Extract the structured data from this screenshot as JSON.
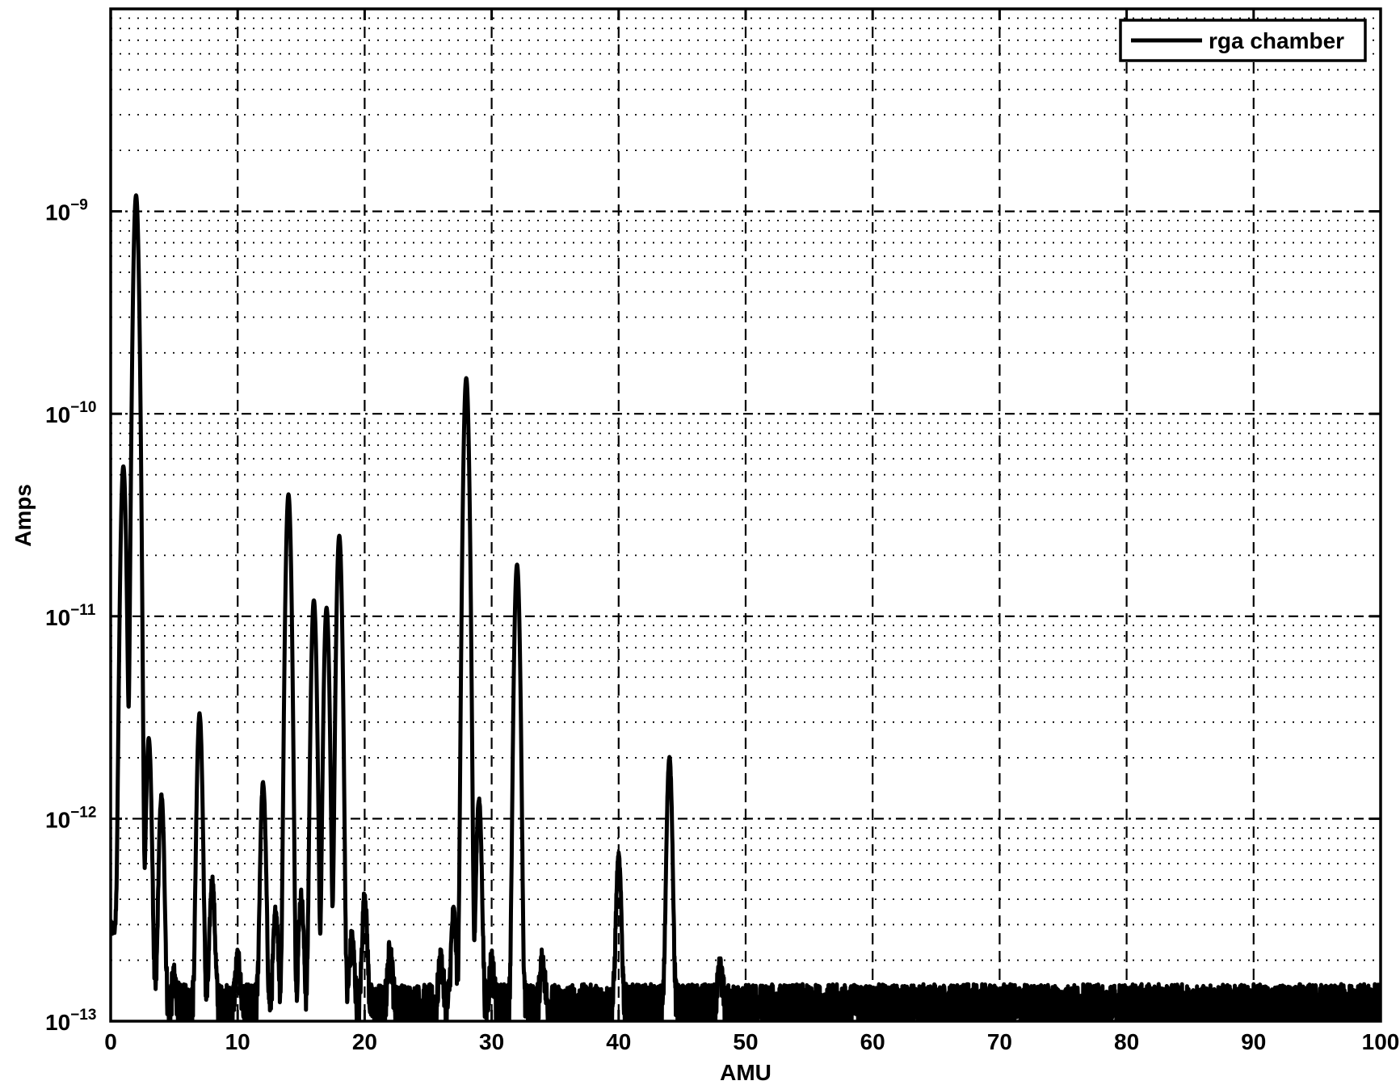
{
  "chart_data": {
    "type": "line",
    "title": "",
    "xlabel": "AMU",
    "ylabel": "Amps",
    "xlim": [
      0,
      100
    ],
    "ylim": [
      1e-13,
      1e-08
    ],
    "yscale": "log",
    "grid": true,
    "legend_position": "top-right",
    "x_ticks": [
      "0",
      "10",
      "20",
      "30",
      "40",
      "50",
      "60",
      "70",
      "80",
      "90",
      "100"
    ],
    "y_ticks": [
      {
        "base": "10",
        "exp": "−13",
        "value": 1e-13
      },
      {
        "base": "10",
        "exp": "−12",
        "value": 1e-12
      },
      {
        "base": "10",
        "exp": "−11",
        "value": 1e-11
      },
      {
        "base": "10",
        "exp": "−10",
        "value": 1e-10
      },
      {
        "base": "10",
        "exp": "−9",
        "value": 1e-09
      }
    ],
    "baseline": 1.2e-13,
    "series": [
      {
        "name": "rga chamber",
        "color": "#000000",
        "peaks": [
          {
            "x": 1,
            "y": 5.5e-11
          },
          {
            "x": 2,
            "y": 1.2e-09
          },
          {
            "x": 3,
            "y": 2.5e-12
          },
          {
            "x": 4,
            "y": 1.3e-12
          },
          {
            "x": 5,
            "y": 1.6e-13
          },
          {
            "x": 7,
            "y": 3.3e-12
          },
          {
            "x": 8,
            "y": 5e-13
          },
          {
            "x": 10,
            "y": 2e-13
          },
          {
            "x": 12,
            "y": 1.5e-12
          },
          {
            "x": 13,
            "y": 3.5e-13
          },
          {
            "x": 14,
            "y": 4e-11
          },
          {
            "x": 15,
            "y": 4.2e-13
          },
          {
            "x": 16,
            "y": 1.2e-11
          },
          {
            "x": 17,
            "y": 1.1e-11
          },
          {
            "x": 18,
            "y": 2.5e-11
          },
          {
            "x": 19,
            "y": 2.6e-13
          },
          {
            "x": 20,
            "y": 4.2e-13
          },
          {
            "x": 22,
            "y": 2.3e-13
          },
          {
            "x": 26,
            "y": 2e-13
          },
          {
            "x": 27,
            "y": 3.5e-13
          },
          {
            "x": 28,
            "y": 1.5e-10
          },
          {
            "x": 29,
            "y": 1.25e-12
          },
          {
            "x": 30,
            "y": 2e-13
          },
          {
            "x": 32,
            "y": 1.8e-11
          },
          {
            "x": 34,
            "y": 2e-13
          },
          {
            "x": 40,
            "y": 6.5e-13
          },
          {
            "x": 44,
            "y": 2e-12
          },
          {
            "x": 48,
            "y": 1.8e-13
          }
        ]
      }
    ]
  }
}
